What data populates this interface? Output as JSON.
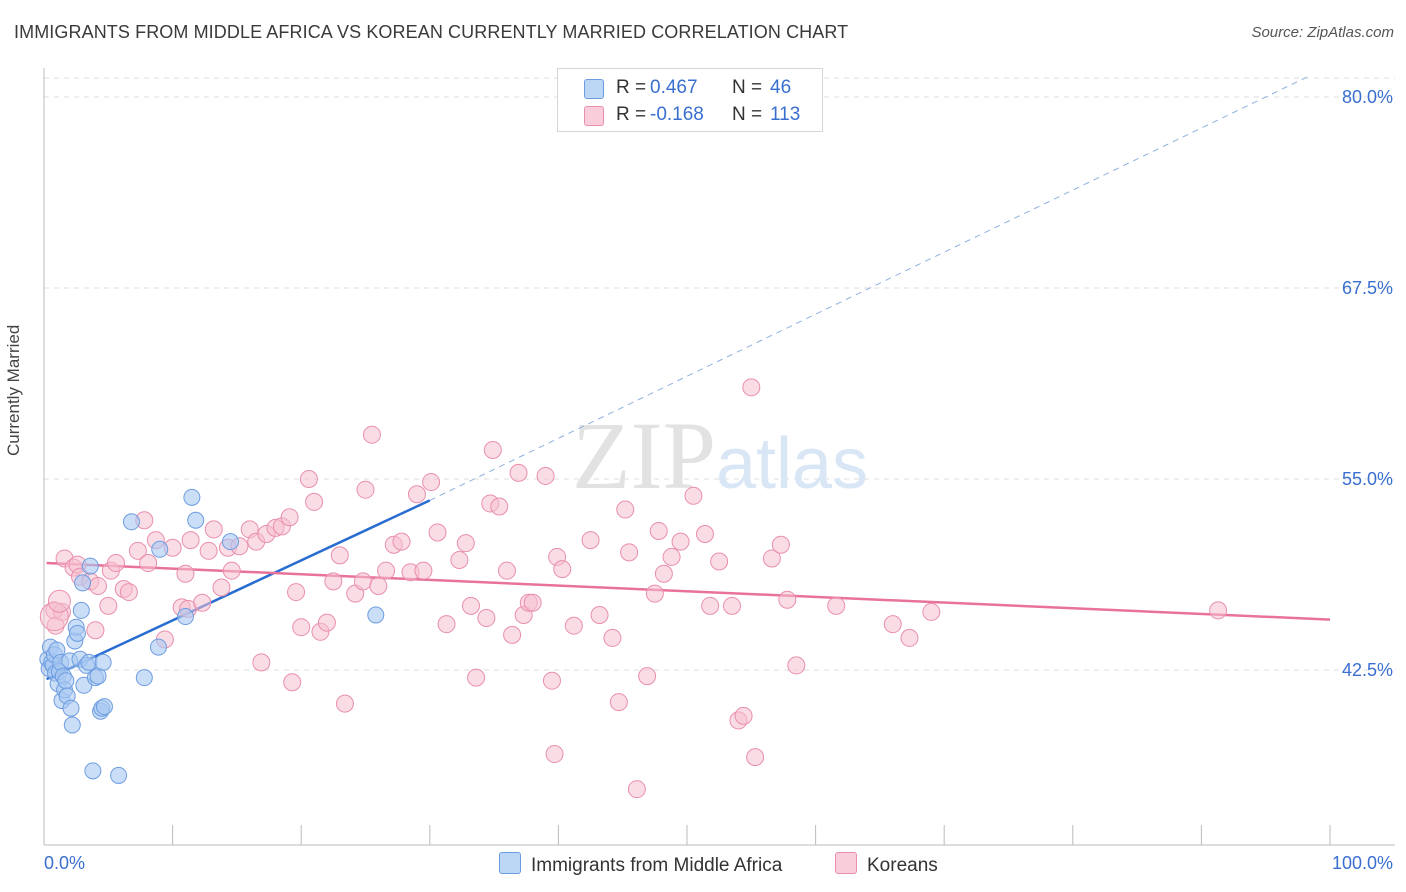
{
  "header": {
    "title": "IMMIGRANTS FROM MIDDLE AFRICA VS KOREAN CURRENTLY MARRIED CORRELATION CHART",
    "source": "Source: ZipAtlas.com"
  },
  "watermark": "ZIPatlas",
  "legend": {
    "rows": [
      {
        "r_label": "R =",
        "r_value": "0.467",
        "n_label": "N =",
        "n_value": "46"
      },
      {
        "r_label": "R =",
        "r_value": "-0.168",
        "n_label": "N =",
        "n_value": "113"
      }
    ]
  },
  "bottom_legend": {
    "series1": "Immigrants from Middle Africa",
    "series2": "Koreans"
  },
  "axes": {
    "ylabel": "Currently Married",
    "x_min_label": "0.0%",
    "x_max_label": "100.0%",
    "y_ticks": [
      "80.0%",
      "67.5%",
      "55.0%",
      "42.5%"
    ]
  },
  "colors": {
    "blue_fill": "#a9c8f2",
    "blue_stroke": "#6d9de0",
    "blue_line": "#2a6dd0",
    "pink_fill": "#f6bfd0",
    "pink_stroke": "#e98fae",
    "pink_line": "#e8729a",
    "axis_text": "#3a6fd0",
    "grid": "#dddddd"
  },
  "chart_data": {
    "type": "scatter",
    "xlabel": "",
    "ylabel": "Currently Married",
    "xlim": [
      0,
      100
    ],
    "ylim": [
      32.0,
      81.5
    ],
    "y_ticks": [
      42.5,
      55.0,
      67.5,
      80.0
    ],
    "grid": true,
    "legend_position": "top-center",
    "series": [
      {
        "name": "Immigrants from Middle Africa",
        "r": 0.467,
        "n": 46,
        "trend": {
          "x0": 0.2,
          "y0": 41.9,
          "x1": 30.0,
          "y1": 53.6,
          "extend_to_x": 100,
          "extend_to_y": 81.4
        },
        "points": [
          [
            0.3,
            43.2
          ],
          [
            0.4,
            42.6
          ],
          [
            0.5,
            44.0
          ],
          [
            0.6,
            43.0
          ],
          [
            0.7,
            42.8
          ],
          [
            0.8,
            43.5
          ],
          [
            0.9,
            42.3
          ],
          [
            1.0,
            43.8
          ],
          [
            1.1,
            41.6
          ],
          [
            1.2,
            42.4
          ],
          [
            1.3,
            43.0
          ],
          [
            1.4,
            40.5
          ],
          [
            1.5,
            42.1
          ],
          [
            1.6,
            41.2
          ],
          [
            1.7,
            41.8
          ],
          [
            1.8,
            40.8
          ],
          [
            2.0,
            43.1
          ],
          [
            2.1,
            40.0
          ],
          [
            2.2,
            38.9
          ],
          [
            2.4,
            44.4
          ],
          [
            2.5,
            45.3
          ],
          [
            2.6,
            44.9
          ],
          [
            2.8,
            43.2
          ],
          [
            2.9,
            46.4
          ],
          [
            3.0,
            48.2
          ],
          [
            3.1,
            41.5
          ],
          [
            3.3,
            42.8
          ],
          [
            3.5,
            43.0
          ],
          [
            3.6,
            49.3
          ],
          [
            3.8,
            35.9
          ],
          [
            4.0,
            42.0
          ],
          [
            4.2,
            42.1
          ],
          [
            4.4,
            39.8
          ],
          [
            4.5,
            40.0
          ],
          [
            4.6,
            43.0
          ],
          [
            4.7,
            40.1
          ],
          [
            5.8,
            35.6
          ],
          [
            6.8,
            52.2
          ],
          [
            7.8,
            42.0
          ],
          [
            8.9,
            44.0
          ],
          [
            9.0,
            50.4
          ],
          [
            11.0,
            46.0
          ],
          [
            11.5,
            53.8
          ],
          [
            11.8,
            52.3
          ],
          [
            14.5,
            50.9
          ],
          [
            25.8,
            46.1
          ]
        ]
      },
      {
        "name": "Koreans",
        "r": -0.168,
        "n": 113,
        "trend": {
          "x0": 0.2,
          "y0": 49.5,
          "x1": 100,
          "y1": 45.8
        },
        "points": [
          [
            0.8,
            46.4
          ],
          [
            0.9,
            45.4
          ],
          [
            1.4,
            46.3
          ],
          [
            1.6,
            49.8
          ],
          [
            2.3,
            49.2
          ],
          [
            2.6,
            49.4
          ],
          [
            2.8,
            48.6
          ],
          [
            3.6,
            48.3
          ],
          [
            4.0,
            45.1
          ],
          [
            4.2,
            48.0
          ],
          [
            5.0,
            46.7
          ],
          [
            5.2,
            49.0
          ],
          [
            5.6,
            49.5
          ],
          [
            6.2,
            47.8
          ],
          [
            6.6,
            47.6
          ],
          [
            7.3,
            50.3
          ],
          [
            7.8,
            52.3
          ],
          [
            8.1,
            49.5
          ],
          [
            8.7,
            51.0
          ],
          [
            9.4,
            44.5
          ],
          [
            10.0,
            50.5
          ],
          [
            10.7,
            46.6
          ],
          [
            11.2,
            46.5
          ],
          [
            11.0,
            48.8
          ],
          [
            11.4,
            51.0
          ],
          [
            12.3,
            46.9
          ],
          [
            12.8,
            50.3
          ],
          [
            13.2,
            51.7
          ],
          [
            13.8,
            47.9
          ],
          [
            14.3,
            50.5
          ],
          [
            14.6,
            49.0
          ],
          [
            15.2,
            50.6
          ],
          [
            16.0,
            51.7
          ],
          [
            16.5,
            50.9
          ],
          [
            16.9,
            43.0
          ],
          [
            17.3,
            51.4
          ],
          [
            18.0,
            51.8
          ],
          [
            18.5,
            51.9
          ],
          [
            19.1,
            52.5
          ],
          [
            19.3,
            41.7
          ],
          [
            19.6,
            47.6
          ],
          [
            20.0,
            45.3
          ],
          [
            20.6,
            55.0
          ],
          [
            21.0,
            53.5
          ],
          [
            21.5,
            45.0
          ],
          [
            22.0,
            45.6
          ],
          [
            22.5,
            48.3
          ],
          [
            23.0,
            50.0
          ],
          [
            23.4,
            40.3
          ],
          [
            24.2,
            47.5
          ],
          [
            24.8,
            48.3
          ],
          [
            25.0,
            54.3
          ],
          [
            25.5,
            57.9
          ],
          [
            26.0,
            48.0
          ],
          [
            26.6,
            49.0
          ],
          [
            27.2,
            50.7
          ],
          [
            27.8,
            50.9
          ],
          [
            28.5,
            48.9
          ],
          [
            29.0,
            54.0
          ],
          [
            29.5,
            49.0
          ],
          [
            30.1,
            54.8
          ],
          [
            30.6,
            51.5
          ],
          [
            31.3,
            45.5
          ],
          [
            32.3,
            49.7
          ],
          [
            32.8,
            50.8
          ],
          [
            33.2,
            46.7
          ],
          [
            33.6,
            42.0
          ],
          [
            34.4,
            45.9
          ],
          [
            34.7,
            53.4
          ],
          [
            34.9,
            56.9
          ],
          [
            35.4,
            53.2
          ],
          [
            36.0,
            49.0
          ],
          [
            36.4,
            44.8
          ],
          [
            36.9,
            55.4
          ],
          [
            37.3,
            46.1
          ],
          [
            37.7,
            46.9
          ],
          [
            38.0,
            46.9
          ],
          [
            39.0,
            55.2
          ],
          [
            39.5,
            41.8
          ],
          [
            39.7,
            37.0
          ],
          [
            39.9,
            49.9
          ],
          [
            40.3,
            49.1
          ],
          [
            41.2,
            45.4
          ],
          [
            42.5,
            51.0
          ],
          [
            43.2,
            46.1
          ],
          [
            44.2,
            44.6
          ],
          [
            44.7,
            40.4
          ],
          [
            45.2,
            53.0
          ],
          [
            45.5,
            50.2
          ],
          [
            46.1,
            34.7
          ],
          [
            46.9,
            42.1
          ],
          [
            47.5,
            47.5
          ],
          [
            47.8,
            51.6
          ],
          [
            48.2,
            48.8
          ],
          [
            48.8,
            49.9
          ],
          [
            49.5,
            50.9
          ],
          [
            50.5,
            53.9
          ],
          [
            51.4,
            51.4
          ],
          [
            51.8,
            46.7
          ],
          [
            52.5,
            49.6
          ],
          [
            53.5,
            46.7
          ],
          [
            54.0,
            39.2
          ],
          [
            54.4,
            39.5
          ],
          [
            55.0,
            61.0
          ],
          [
            55.3,
            36.8
          ],
          [
            56.6,
            49.8
          ],
          [
            57.3,
            50.7
          ],
          [
            57.8,
            47.1
          ],
          [
            58.5,
            42.8
          ],
          [
            61.6,
            46.7
          ],
          [
            66.0,
            45.5
          ],
          [
            67.3,
            44.6
          ],
          [
            69.0,
            46.3
          ],
          [
            91.3,
            46.4
          ]
        ]
      }
    ]
  }
}
